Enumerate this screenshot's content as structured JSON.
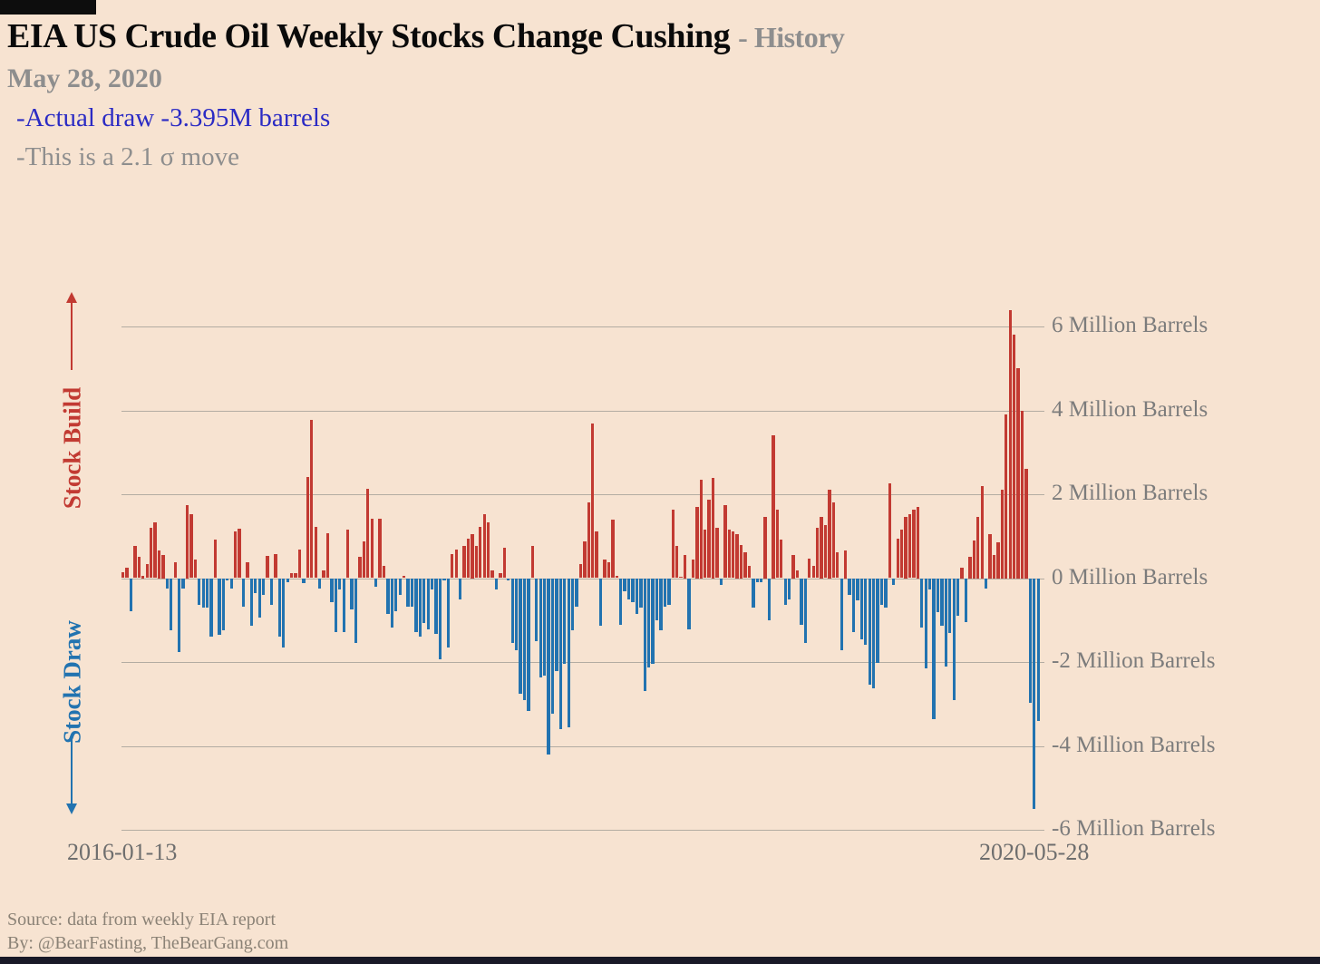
{
  "page": {
    "title_main": "EIA US Crude Oil Weekly Stocks Change Cushing ",
    "title_suffix": "- History",
    "subtitle_date": "May 28, 2020",
    "annotation_primary": "-Actual draw -3.395M barrels",
    "annotation_secondary": "-This is a 2.1 σ move",
    "footer_line1": "Source: data from  weekly EIA report",
    "footer_line2": "By: @BearFasting, TheBearGang.com"
  },
  "axis": {
    "left_top_label": "Stock Build",
    "left_bottom_label": "Stock Draw",
    "x_start_label": "2016-01-13",
    "x_end_label": "2020-05-28"
  },
  "colors": {
    "background": "#f7e3d1",
    "build": "#c23a32",
    "draw": "#2273b0",
    "annotation_blue": "#2b2bc4",
    "muted_gray": "#8e8e8e",
    "grid": "#b3aca2",
    "bottom_bar": "#191927",
    "top_box": "#0d0d0d"
  },
  "chart_data": {
    "type": "bar",
    "title": "EIA US Crude Oil Weekly Stocks Change Cushing - History",
    "units": "Million Barrels",
    "frequency": "weekly",
    "x_start": "2016-01-13",
    "x_end": "2020-05-28",
    "ylim": [
      -6.5,
      7
    ],
    "grid": true,
    "legend": "none",
    "positive_meaning": "Stock Build (red)",
    "negative_meaning": "Stock Draw (blue)",
    "latest": {
      "date": "May 28, 2020",
      "change_million_barrels": -3.395,
      "sigma_move": 2.1
    },
    "y_ticks": [
      {
        "value": 6,
        "label": "6 Million Barrels"
      },
      {
        "value": 4,
        "label": "4 Million Barrels"
      },
      {
        "value": 2,
        "label": "2 Million Barrels"
      },
      {
        "value": 0,
        "label": "0 Million Barrels"
      },
      {
        "value": -2,
        "label": "-2 Million Barrels"
      },
      {
        "value": -4,
        "label": "-4 Million Barrels"
      },
      {
        "value": -6,
        "label": "-6 Million Barrels"
      }
    ],
    "values": [
      0.13,
      0.24,
      -0.78,
      0.76,
      0.51,
      0.05,
      0.33,
      1.19,
      1.34,
      0.65,
      0.55,
      -0.24,
      -1.25,
      0.37,
      -1.76,
      -0.24,
      1.75,
      1.53,
      0.44,
      -0.64,
      -0.71,
      -0.71,
      -1.4,
      0.91,
      -1.36,
      -1.25,
      -0.06,
      -0.24,
      1.12,
      1.17,
      -0.68,
      0.37,
      -1.14,
      -0.35,
      -0.93,
      -0.39,
      0.53,
      -0.63,
      0.58,
      -1.4,
      -1.65,
      -0.1,
      0.12,
      0.12,
      0.69,
      -0.12,
      2.42,
      3.78,
      1.23,
      -0.24,
      0.19,
      1.07,
      -0.57,
      -1.29,
      -0.28,
      -1.29,
      1.16,
      -0.75,
      -1.54,
      0.51,
      0.87,
      2.13,
      1.41,
      -0.21,
      1.41,
      0.29,
      -0.86,
      -1.18,
      -0.78,
      -0.39,
      0.06,
      -0.68,
      -0.68,
      -1.29,
      -1.4,
      -1.07,
      -1.22,
      -0.28,
      -1.32,
      -1.94,
      -0.06,
      -1.65,
      0.58,
      0.69,
      -0.5,
      0.76,
      0.94,
      1.05,
      0.76,
      1.23,
      1.52,
      1.32,
      0.19,
      -0.28,
      0.12,
      0.73,
      -0.06,
      -1.54,
      -1.72,
      -2.76,
      -2.91,
      -3.16,
      0.76,
      -1.5,
      -2.37,
      -2.33,
      -4.2,
      -3.23,
      -2.22,
      -3.59,
      -2.04,
      -3.55,
      -1.25,
      -0.68,
      0.33,
      0.87,
      1.81,
      3.68,
      1.12,
      -1.14,
      0.44,
      0.37,
      1.39,
      0.06,
      -1.11,
      -0.32,
      -0.5,
      -0.57,
      -0.86,
      -0.71,
      -2.69,
      -2.12,
      -2.04,
      -1.0,
      -1.25,
      -0.68,
      -0.64,
      1.63,
      0.76,
      0.04,
      0.55,
      -1.22,
      0.44,
      1.7,
      2.35,
      1.16,
      1.88,
      2.4,
      1.19,
      -0.17,
      1.73,
      1.16,
      1.12,
      1.05,
      0.8,
      0.62,
      0.29,
      -0.71,
      -0.1,
      -0.1,
      1.45,
      -1.0,
      3.4,
      1.63,
      0.91,
      -0.64,
      -0.5,
      0.55,
      0.19,
      -1.11,
      -1.54,
      0.47,
      0.29,
      1.19,
      1.45,
      1.27,
      2.1,
      1.81,
      0.62,
      -1.72,
      0.65,
      -0.39,
      -1.29,
      -0.53,
      -1.47,
      -1.58,
      -2.55,
      -2.62,
      -2.03,
      -0.64,
      -0.71,
      2.27,
      -0.17,
      0.94,
      1.16,
      1.45,
      1.52,
      1.63,
      1.7,
      -1.18,
      -2.15,
      -0.28,
      -3.37,
      -0.82,
      -1.14,
      -2.1,
      -1.3,
      -2.9,
      -0.9,
      0.25,
      -1.04,
      0.5,
      0.9,
      1.45,
      2.2,
      -0.25,
      1.05,
      0.55,
      0.85,
      2.1,
      3.9,
      6.4,
      5.8,
      5.0,
      4.0,
      2.6,
      -2.98,
      -5.5,
      -3.395
    ]
  }
}
